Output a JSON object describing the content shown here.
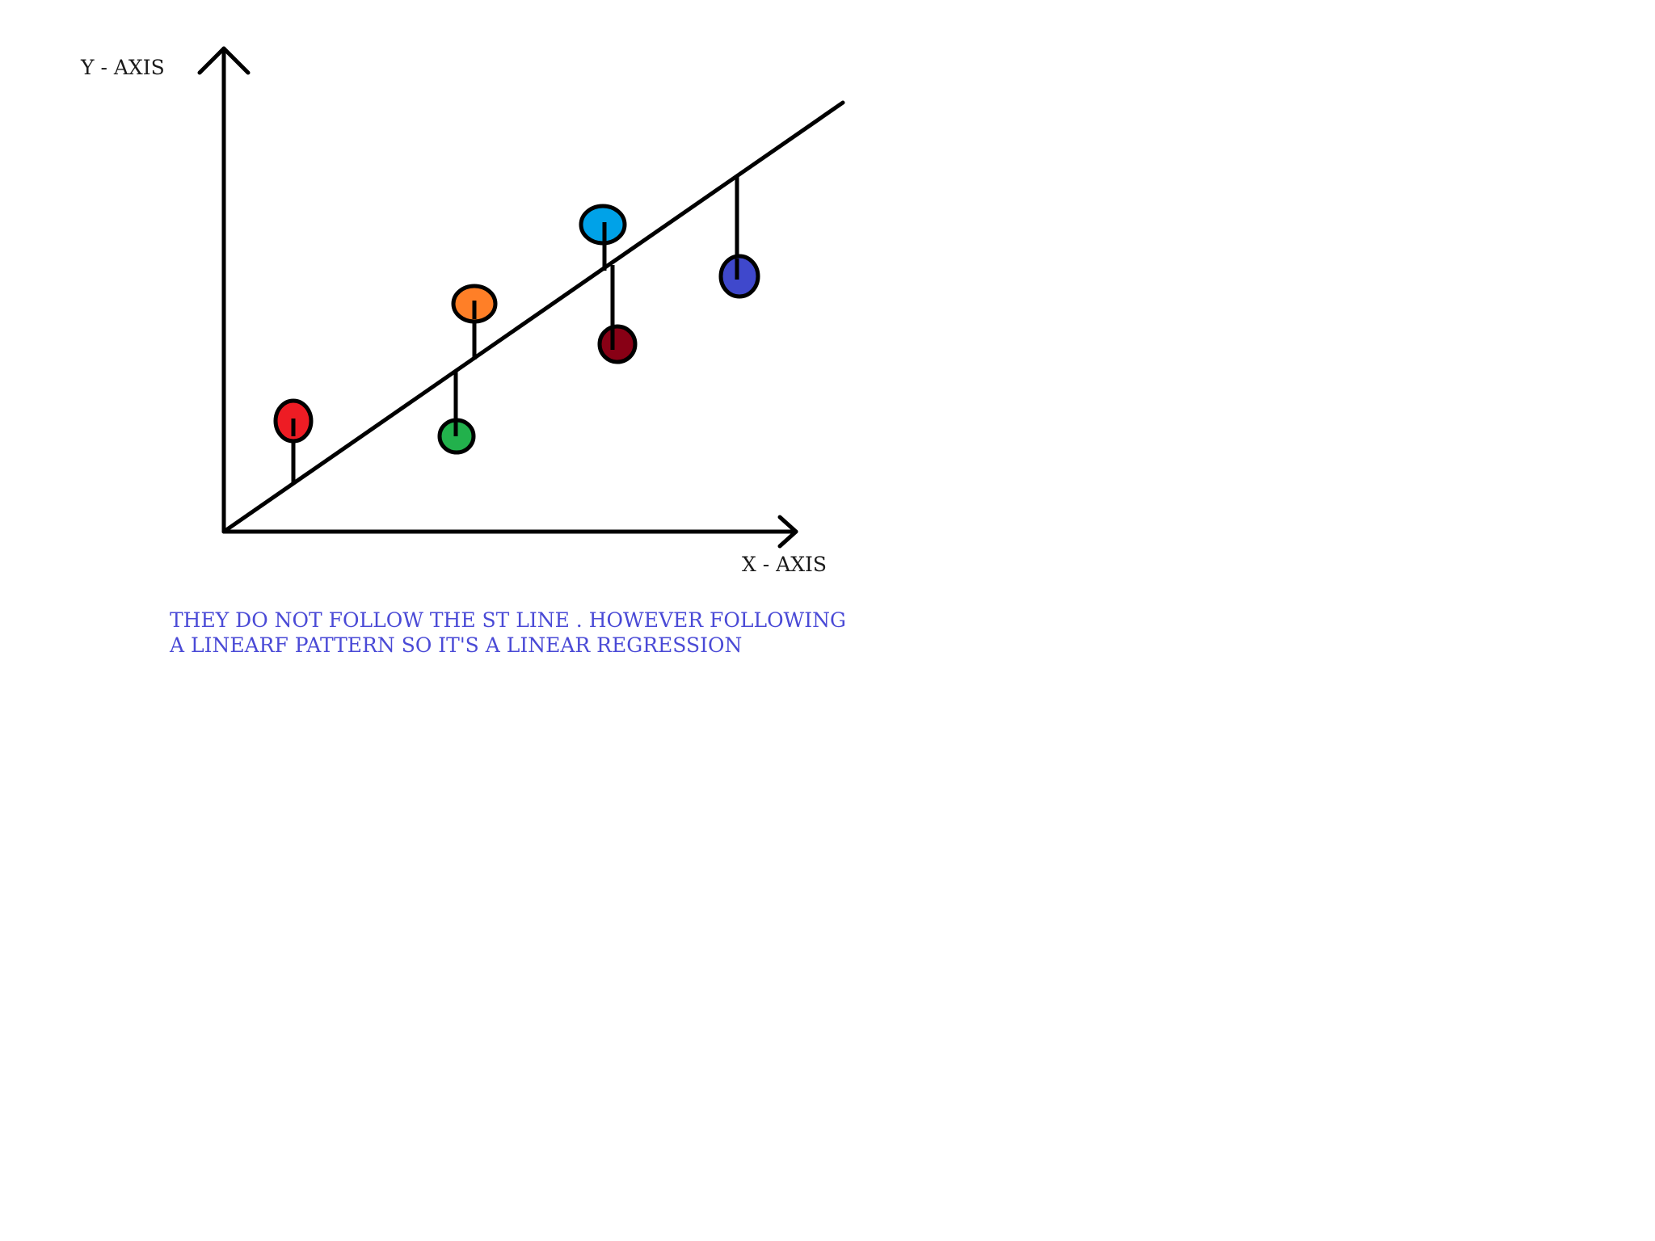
{
  "axes": {
    "y_label": "Y - AXIS",
    "x_label": "X - AXIS"
  },
  "caption": {
    "line1": "THEY DO NOT FOLLOW THE ST LINE . HOWEVER FOLLOWING",
    "line2": "A LINEARF PATTERN SO IT'S A LINEAR REGRESSION",
    "color": "#4a4ad6"
  },
  "line_color": "#000000",
  "points": [
    {
      "name": "red",
      "color": "#ee1c24"
    },
    {
      "name": "green",
      "color": "#22b14c"
    },
    {
      "name": "orange",
      "color": "#ff7f27"
    },
    {
      "name": "cyan",
      "color": "#00a2e8"
    },
    {
      "name": "maroon",
      "color": "#880015"
    },
    {
      "name": "blue",
      "color": "#3f48cc"
    }
  ]
}
